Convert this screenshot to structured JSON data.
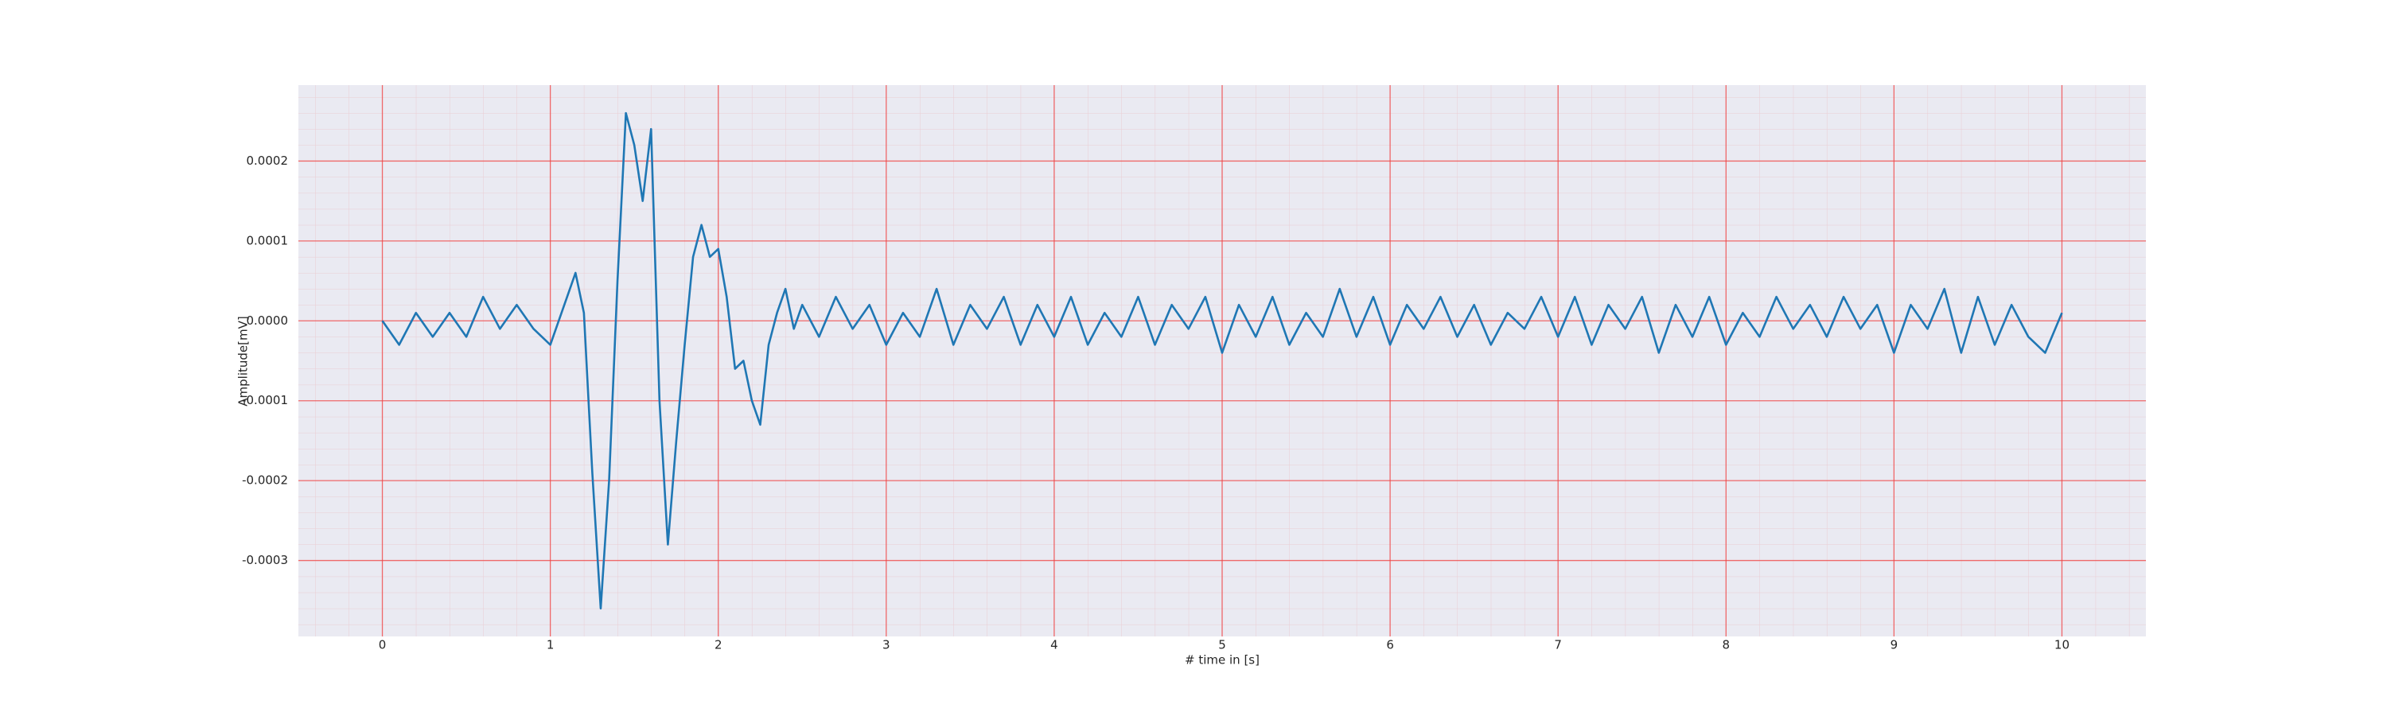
{
  "chart_data": {
    "type": "line",
    "xlabel": "# time in [s]",
    "ylabel": "Amplitude[mV]",
    "x": [
      0,
      0.1,
      0.2,
      0.3,
      0.4,
      0.5,
      0.6,
      0.7,
      0.8,
      0.9,
      1.0,
      1.05,
      1.1,
      1.15,
      1.2,
      1.25,
      1.3,
      1.35,
      1.4,
      1.45,
      1.5,
      1.55,
      1.6,
      1.65,
      1.7,
      1.75,
      1.8,
      1.85,
      1.9,
      1.95,
      2.0,
      2.05,
      2.1,
      2.15,
      2.2,
      2.25,
      2.3,
      2.35,
      2.4,
      2.45,
      2.5,
      2.6,
      2.7,
      2.8,
      2.9,
      3.0,
      3.1,
      3.2,
      3.3,
      3.4,
      3.5,
      3.6,
      3.7,
      3.8,
      3.9,
      4.0,
      4.1,
      4.2,
      4.3,
      4.4,
      4.5,
      4.6,
      4.7,
      4.8,
      4.9,
      5.0,
      5.1,
      5.2,
      5.3,
      5.4,
      5.5,
      5.6,
      5.7,
      5.8,
      5.9,
      6.0,
      6.1,
      6.2,
      6.3,
      6.4,
      6.5,
      6.6,
      6.7,
      6.8,
      6.9,
      7.0,
      7.1,
      7.2,
      7.3,
      7.4,
      7.5,
      7.6,
      7.7,
      7.8,
      7.9,
      8.0,
      8.1,
      8.2,
      8.3,
      8.4,
      8.5,
      8.6,
      8.7,
      8.8,
      8.9,
      9.0,
      9.1,
      9.2,
      9.3,
      9.4,
      9.5,
      9.6,
      9.7,
      9.8,
      9.9,
      10.0
    ],
    "values": [
      0,
      -3e-05,
      1e-05,
      -2e-05,
      1e-05,
      -2e-05,
      3e-05,
      -1e-05,
      2e-05,
      -1e-05,
      -3e-05,
      0,
      3e-05,
      6e-05,
      1e-05,
      -0.00019,
      -0.00036,
      -0.0002,
      5e-05,
      0.00026,
      0.00022,
      0.00015,
      0.00024,
      -0.0001,
      -0.00028,
      -0.00015,
      -3e-05,
      8e-05,
      0.00012,
      8e-05,
      9e-05,
      3e-05,
      -6e-05,
      -5e-05,
      -0.0001,
      -0.00013,
      -3e-05,
      1e-05,
      4e-05,
      -1e-05,
      2e-05,
      -2e-05,
      3e-05,
      -1e-05,
      2e-05,
      -3e-05,
      1e-05,
      -2e-05,
      4e-05,
      -3e-05,
      2e-05,
      -1e-05,
      3e-05,
      -3e-05,
      2e-05,
      -2e-05,
      3e-05,
      -3e-05,
      1e-05,
      -2e-05,
      3e-05,
      -3e-05,
      2e-05,
      -1e-05,
      3e-05,
      -4e-05,
      2e-05,
      -2e-05,
      3e-05,
      -3e-05,
      1e-05,
      -2e-05,
      4e-05,
      -2e-05,
      3e-05,
      -3e-05,
      2e-05,
      -1e-05,
      3e-05,
      -2e-05,
      2e-05,
      -3e-05,
      1e-05,
      -1e-05,
      3e-05,
      -2e-05,
      3e-05,
      -3e-05,
      2e-05,
      -1e-05,
      3e-05,
      -4e-05,
      2e-05,
      -2e-05,
      3e-05,
      -3e-05,
      1e-05,
      -2e-05,
      3e-05,
      -1e-05,
      2e-05,
      -2e-05,
      3e-05,
      -1e-05,
      2e-05,
      -4e-05,
      2e-05,
      -1e-05,
      4e-05,
      -4e-05,
      3e-05,
      -3e-05,
      2e-05,
      -2e-05,
      -4e-05,
      1e-05
    ],
    "color": "#1f77b4",
    "xlim": [
      -0.5,
      10.5
    ],
    "xticks": [
      0,
      1,
      2,
      3,
      4,
      5,
      6,
      7,
      8,
      9,
      10
    ],
    "ylim": [
      -0.000395,
      0.000295
    ],
    "yticks": [
      -0.0003,
      -0.0002,
      -0.0001,
      {
        "value": 0,
        "label": "0.0000"
      },
      0.0001,
      0.0002
    ],
    "grid": true,
    "minor_grid": true,
    "grid_color": "#f04040",
    "background": "#eaeaf2"
  }
}
